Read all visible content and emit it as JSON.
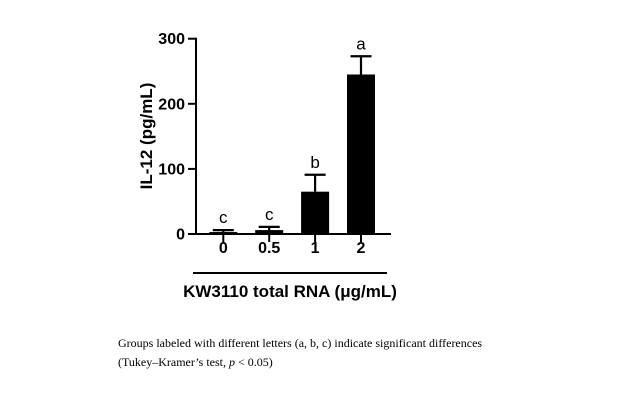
{
  "figure": {
    "background": "#ffffff",
    "bar_color": "#000000",
    "axis_color": "#000000",
    "text_color": "#000000"
  },
  "chart_data": {
    "type": "bar",
    "categories": [
      "0",
      "0.5",
      "1",
      "2"
    ],
    "values": [
      3,
      6,
      65,
      245
    ],
    "errors": [
      3,
      5,
      26,
      28
    ],
    "sig_letters": [
      "c",
      "c",
      "b",
      "a"
    ],
    "title": "",
    "xlabel": "KW3110 total RNA (μg/mL)",
    "ylabel": "IL-12 (pg/mL)",
    "ylim": [
      0,
      300
    ],
    "yticks": [
      0,
      100,
      200,
      300
    ],
    "grid": false,
    "legend": null,
    "error_bar_style": "upper cap only",
    "annotation_note": "letters a, b, c mark Tukey-Kramer significance groups"
  },
  "caption": {
    "line1": "Groups labeled with different letters (a, b, c) indicate significant differences",
    "line2_prefix": "(Tukey–Kramer’s test, ",
    "line2_italic": "p",
    "line2_suffix": " < 0.05)"
  }
}
